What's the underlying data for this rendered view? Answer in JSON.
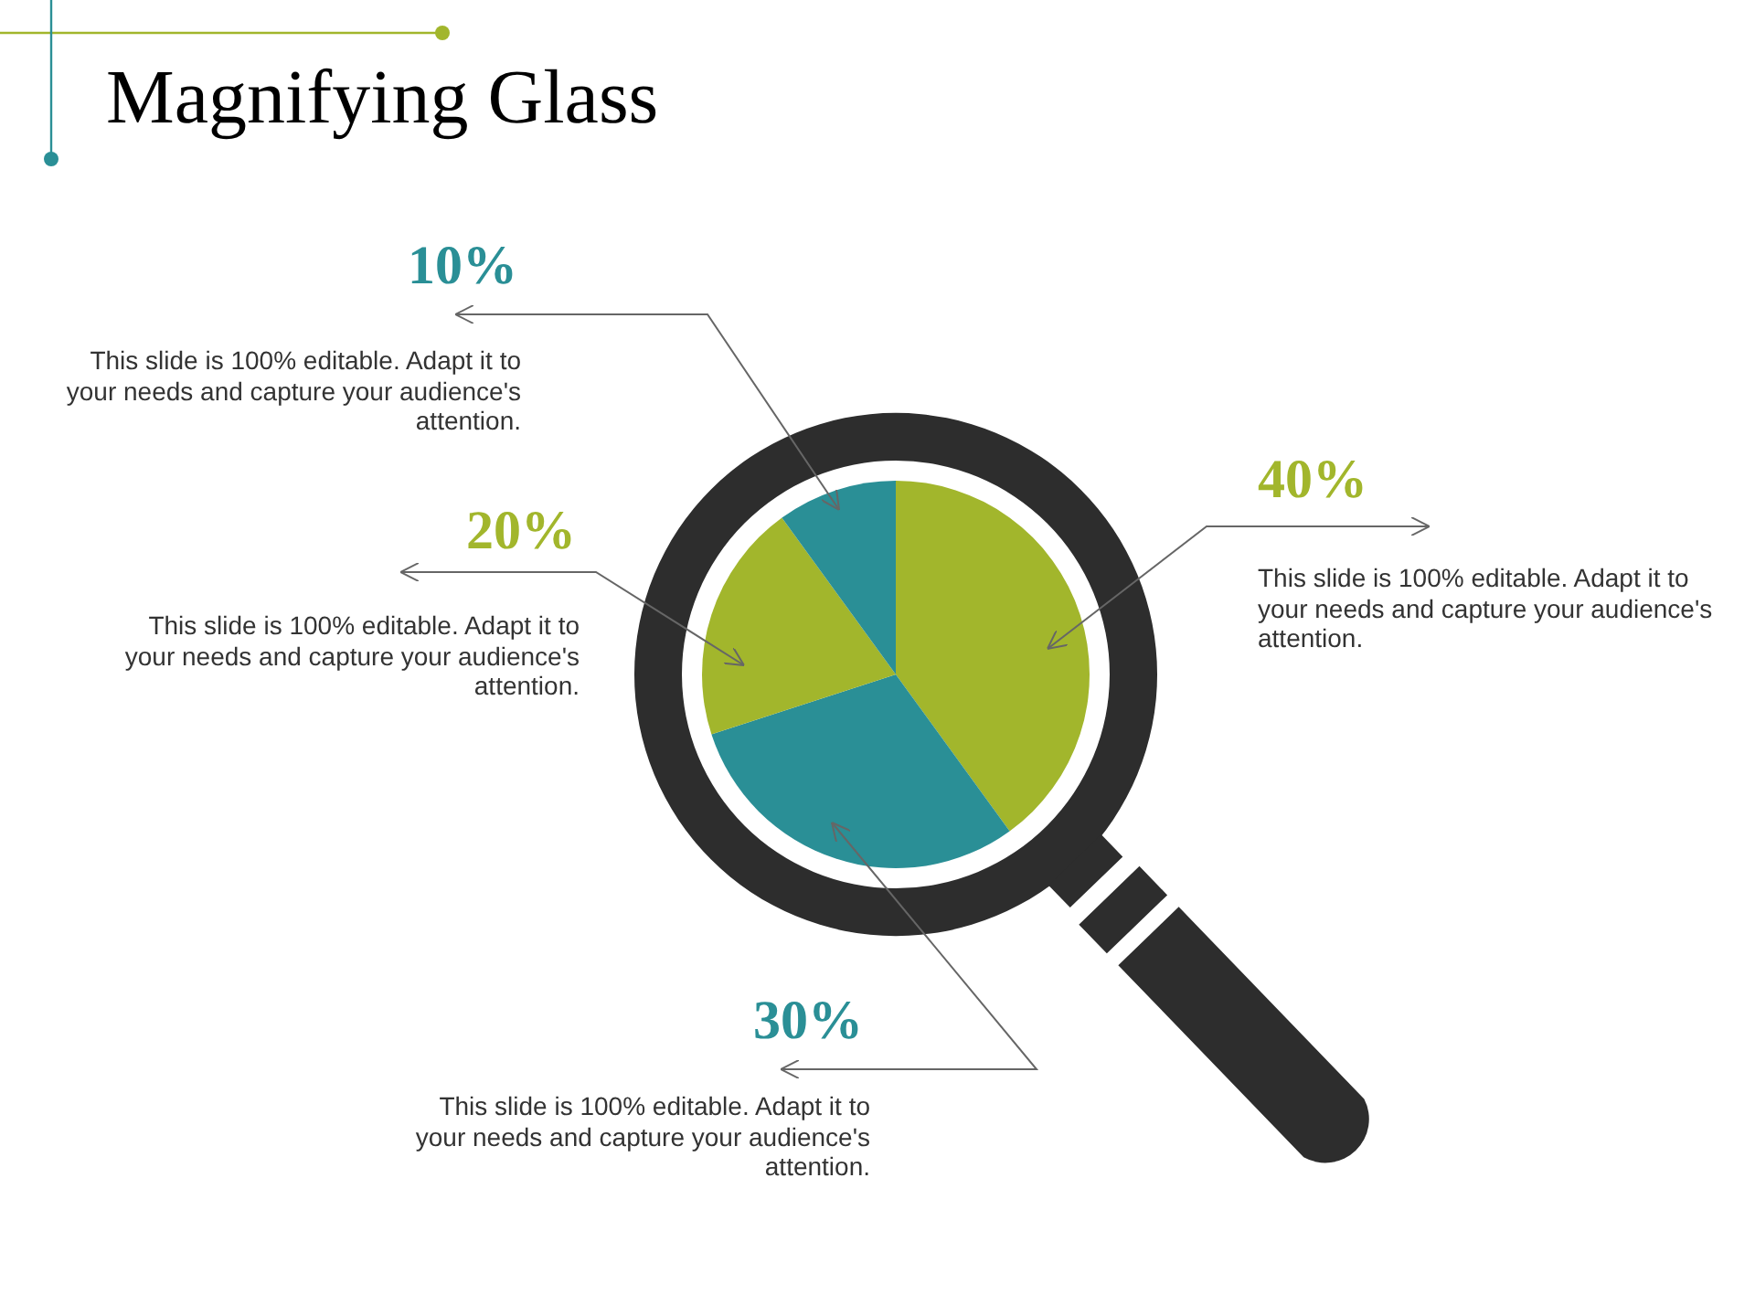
{
  "chart_data": {
    "type": "pie",
    "title": "Magnifying Glass",
    "categories": [
      null,
      null,
      null,
      null
    ],
    "values": [
      40,
      30,
      20,
      10
    ],
    "colors": [
      "#a2b62c",
      "#2a8f96",
      "#a2b62c",
      "#2a8f96"
    ],
    "value_labels": [
      "40%",
      "30%",
      "20%",
      "10%"
    ],
    "annotations": [
      "This slide is 100% editable. Adapt it to your needs and capture your audience's attention.",
      "This slide is 100% editable. Adapt it to your needs and capture your audience's attention.",
      "This slide is 100% editable. Adapt it to your needs and capture your audience's attention.",
      "This slide is 100% editable. Adapt it to your needs and capture your audience's attention."
    ]
  }
}
